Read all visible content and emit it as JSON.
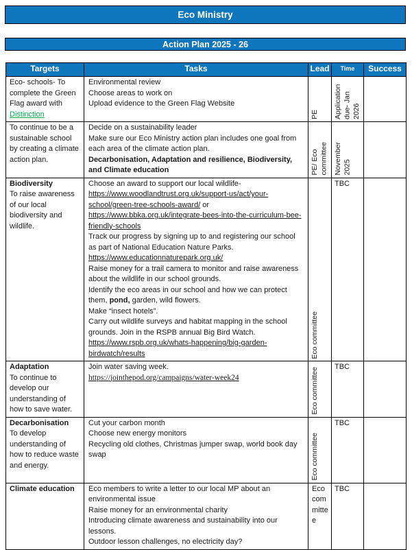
{
  "page": {
    "title": "Eco Ministry",
    "subtitle": "Action Plan 2025 - 26"
  },
  "colors": {
    "accent_blue": "#0e76bd",
    "highlight_green": "#00b050"
  },
  "table": {
    "headers": [
      "Targets",
      "Tasks",
      "Lead",
      "Time",
      "Success"
    ],
    "rows": [
      {
        "target": [
          [
            {
              "text": "Eco- schools- To complete the Green Flag award with "
            },
            {
              "text": "Distinction",
              "green": true
            }
          ]
        ],
        "tasks": [
          [
            {
              "text": "Environmental review"
            }
          ],
          [
            {
              "text": "Choose areas to work on"
            }
          ],
          [
            {
              "text": "Upload evidence to the Green Flag Website"
            }
          ]
        ],
        "lead": {
          "text": "PE",
          "rotated": true
        },
        "time": {
          "text": "Application due- Jan 2026",
          "rotated": true
        },
        "success": ""
      },
      {
        "target": [
          [
            {
              "text": "To continue to be a sustainable school by creating a climate action plan."
            }
          ]
        ],
        "tasks": [
          [
            {
              "text": "Decide on a sustainability leader"
            }
          ],
          [
            {
              "text": "Make sure our Eco Ministry action plan includes one goal from each area of the climate action plan."
            }
          ],
          [
            {
              "text": "Decarbonisation, Adaptation and resilience, Biodiversity, and Climate education",
              "bold": true
            }
          ]
        ],
        "lead": {
          "text": "PE/ Eco committee",
          "rotated": true
        },
        "time": {
          "text": "November 2025",
          "rotated": true
        },
        "success": ""
      },
      {
        "target": [
          [
            {
              "text": "Biodiversity",
              "bold": true
            }
          ],
          [
            {
              "text": "To raise awareness of our local biodiversity and wildlife."
            }
          ]
        ],
        "tasks": [
          [
            {
              "text": "Choose an award to support our local wildlife-"
            }
          ],
          [
            {
              "text": "https://www.woodlandtrust.org.uk/support-us/act/your-school/green-tree-schools-award/",
              "link": true
            },
            {
              "text": " or"
            }
          ],
          [
            {
              "text": "https://www.bbka.org.uk/integrate-bees-into-the-curriculum-bee-friendly-schools",
              "link": true
            }
          ],
          [
            {
              "text": "Track our progress by signing up to and registering our school as part of National Education Nature Parks."
            }
          ],
          [
            {
              "text": "https://www.educationnaturepark.org.uk/",
              "link": true
            }
          ],
          [
            {
              "text": "Raise money for a trail camera to monitor and raise awareness about the wildlife in our school grounds."
            }
          ],
          [
            {
              "text": "Identify the eco areas in our school and how we can protect them, "
            },
            {
              "text": "pond,",
              "bold": true
            },
            {
              "text": " garden, wild flowers."
            }
          ],
          [
            {
              "text": "Make “insect hotels”."
            }
          ],
          [
            {
              "text": "Carry out wildlife surveys and habitat mapping in the school grounds. Join in the RSPB annual Big Bird Watch."
            }
          ],
          [
            {
              "text": "https://www.rspb.org.uk/whats-happening/big-garden-birdwatch/results",
              "link": true
            }
          ]
        ],
        "lead": {
          "text": "Eco committee",
          "rotated": true
        },
        "time": {
          "text": "TBC",
          "rotated": false
        },
        "success": ""
      },
      {
        "target": [
          [
            {
              "text": "Adaptation",
              "bold": true
            }
          ],
          [
            {
              "text": "To continue to develop our understanding of how to save water."
            }
          ]
        ],
        "tasks": [
          [
            {
              "text": "Join water saving week."
            }
          ],
          [
            {
              "text": "https://jointhepod.org/campaigns/water-week24",
              "link": true,
              "serif": true
            }
          ]
        ],
        "lead": {
          "text": "Eco committee",
          "rotated": true
        },
        "time": {
          "text": "TBC",
          "rotated": false
        },
        "success": ""
      },
      {
        "target": [
          [
            {
              "text": "Decarbonisation",
              "bold": true
            }
          ],
          [
            {
              "text": "To develop understanding of how to reduce waste and energy."
            }
          ]
        ],
        "tasks": [
          [
            {
              "text": "Cut your carbon month"
            }
          ],
          [
            {
              "text": "Choose new energy monitors"
            }
          ],
          [
            {
              "text": "Recycling old clothes, Christmas jumper swap, world book day swap"
            }
          ]
        ],
        "lead": {
          "text": "Eco committee",
          "rotated": true
        },
        "time": {
          "text": "TBC",
          "rotated": false
        },
        "success": ""
      },
      {
        "target": [
          [
            {
              "text": "Climate education",
              "bold": true
            }
          ]
        ],
        "tasks": [
          [
            {
              "text": "Eco members to write a letter to our local MP about an environmental issue"
            }
          ],
          [
            {
              "text": "Raise money for an environmental charity"
            }
          ],
          [
            {
              "text": "Introducing climate awareness and sustainability into our lessons."
            }
          ],
          [
            {
              "text": "Outdoor lesson challenges, no electricity day?"
            }
          ]
        ],
        "lead": {
          "text": "Eco committee",
          "rotated": false
        },
        "time": {
          "text": "TBC",
          "rotated": false
        },
        "success": ""
      }
    ]
  }
}
